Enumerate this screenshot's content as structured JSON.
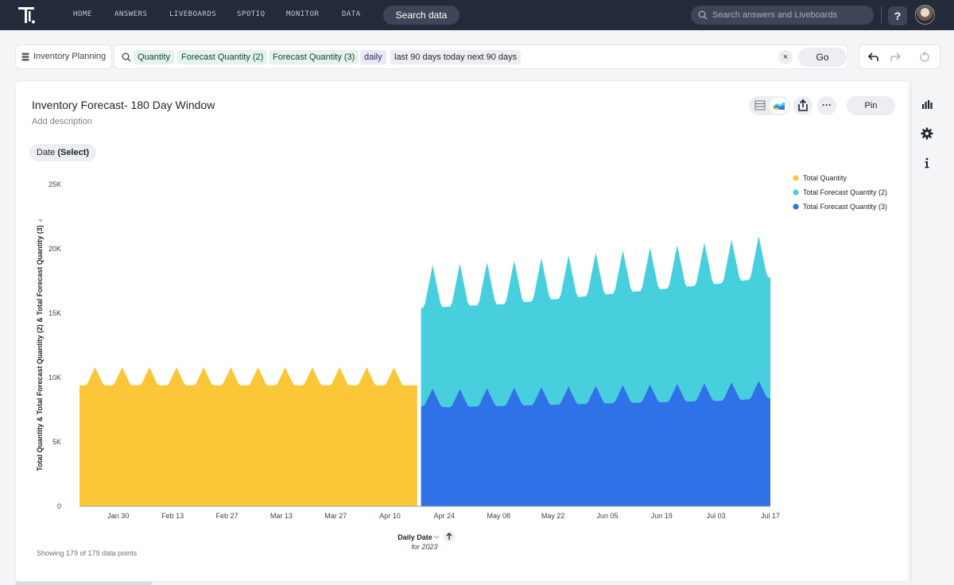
{
  "nav": {
    "items": [
      "HOME",
      "ANSWERS",
      "LIVEBOARDS",
      "SPOTIQ",
      "MONITOR",
      "DATA"
    ],
    "search_data_label": "Search data",
    "global_search_placeholder": "Search answers and Liveboards",
    "help_label": "?"
  },
  "searchbar": {
    "worksheet": "Inventory Planning",
    "tokens": [
      {
        "label": "Quantity",
        "kind": "green"
      },
      {
        "label": "Forecast Quantity (2)",
        "kind": "green"
      },
      {
        "label": "Forecast Quantity (3)",
        "kind": "green"
      },
      {
        "label": "daily",
        "kind": "purple"
      },
      {
        "label": "last 90 days today next 90 days",
        "kind": "gray"
      }
    ],
    "clear_label": "×",
    "go_label": "Go"
  },
  "answer": {
    "title": "Inventory Forecast- 180 Day Window",
    "description_placeholder": "Add description",
    "filter_chip": {
      "name": "Date",
      "value": "(Select)"
    },
    "pin_label": "Pin",
    "more_label": "···",
    "footer": "Showing 179 of 179 data points"
  },
  "colors": {
    "quantity": "#fbc738",
    "forecast2": "#48cfdd",
    "forecast3": "#2f72e8",
    "nav_bg": "#232a3a"
  },
  "chart_data": {
    "type": "area",
    "stacked": true,
    "ylabel": "Total Quantity & Total Forecast Quantity (2) & Total Forecast Quantity (3)",
    "xlabel": "Daily Date",
    "xlabel_sub": "for 2023",
    "ylim": [
      0,
      25000
    ],
    "y_ticks": [
      0,
      5000,
      10000,
      15000,
      20000,
      25000
    ],
    "y_tick_labels": [
      "0",
      "5K",
      "10K",
      "15K",
      "20K",
      "25K"
    ],
    "x_tick_labels": [
      "Jan 30",
      "Feb 13",
      "Feb 27",
      "Mar 13",
      "Mar 27",
      "Apr 10",
      "Apr 24",
      "May 08",
      "May 22",
      "Jun 05",
      "Jun 19",
      "Jul 03",
      "Jul 17"
    ],
    "x_ticks": [
      "2023-01-30",
      "2023-02-13",
      "2023-02-27",
      "2023-03-13",
      "2023-03-27",
      "2023-04-10",
      "2023-04-24",
      "2023-05-08",
      "2023-05-22",
      "2023-06-05",
      "2023-06-19",
      "2023-07-03",
      "2023-07-17"
    ],
    "x_range": [
      "2023-01-20",
      "2023-07-17"
    ],
    "legend_position": "top-right",
    "series": [
      {
        "name": "Total Quantity",
        "color": "#fbc738",
        "date_range": [
          "2023-01-20",
          "2023-04-17"
        ],
        "baseline": 9400,
        "weekly_peak": 10800,
        "peak_dates": [
          "2023-01-24",
          "2023-01-31",
          "2023-02-07",
          "2023-02-14",
          "2023-02-21",
          "2023-02-28",
          "2023-03-07",
          "2023-03-14",
          "2023-03-21",
          "2023-03-28",
          "2023-04-04",
          "2023-04-11"
        ]
      },
      {
        "name": "Total Forecast Quantity (2)",
        "color": "#48cfdd",
        "date_range": [
          "2023-04-18",
          "2023-07-17"
        ],
        "points": [
          [
            "2023-04-18",
            7600
          ],
          [
            "2023-04-25",
            7800
          ],
          [
            "2023-05-09",
            7900
          ],
          [
            "2023-05-23",
            8200
          ],
          [
            "2023-06-06",
            8500
          ],
          [
            "2023-06-20",
            8800
          ],
          [
            "2023-07-04",
            9100
          ],
          [
            "2023-07-17",
            9400
          ]
        ],
        "weekly_peak_extra": 1900
      },
      {
        "name": "Total Forecast Quantity (3)",
        "color": "#2f72e8",
        "date_range": [
          "2023-04-18",
          "2023-07-17"
        ],
        "points": [
          [
            "2023-04-18",
            7800
          ],
          [
            "2023-04-25",
            7700
          ],
          [
            "2023-05-09",
            7800
          ],
          [
            "2023-05-23",
            7900
          ],
          [
            "2023-06-06",
            8000
          ],
          [
            "2023-06-20",
            8100
          ],
          [
            "2023-07-04",
            8200
          ],
          [
            "2023-07-17",
            8400
          ]
        ],
        "weekly_peak_extra": 1400
      }
    ]
  }
}
